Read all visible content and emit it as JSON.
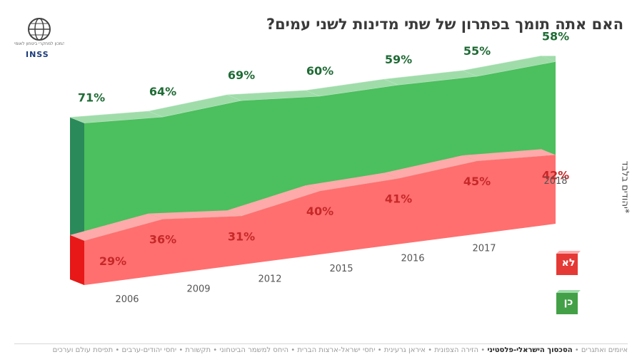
{
  "title": "האם אתה תומך בפתרון של שתי מדינות לשני עמים?",
  "side_note": "*יהודים בלבד",
  "logo": {
    "org_text": "המכון למחקרי ביטחון לאומי",
    "brand": "INSS"
  },
  "legend": [
    {
      "label": "לא",
      "color": "#e53935"
    },
    {
      "label": "כן",
      "color": "#43a047"
    }
  ],
  "footer": {
    "items": [
      "איומים ואתגרים",
      "הסכסוך הישראלי-פלסטיני",
      "הזירה הצפונית",
      "איראן גרעינית",
      "יחסי ישראל-ארצות הברית",
      "היחס למשמר הביטחוני",
      "תקשורת",
      "יחסי יהודים-ערבים",
      "תפיסת עולם וערכים"
    ],
    "active_index": 1
  },
  "colors": {
    "yes_front": "#4cbf5e",
    "yes_top": "#9fdcaa",
    "yes_side": "#2a8a5a",
    "no_front": "#ff6f6f",
    "no_top": "#ffaaaa",
    "no_side": "#e81818",
    "yes_label": "#1f6b35",
    "no_label": "#c62828"
  },
  "chart_data": {
    "type": "area",
    "x": [
      "2006",
      "2009",
      "2012",
      "2015",
      "2016",
      "2017",
      "2018"
    ],
    "series": [
      {
        "name": "כן",
        "values": [
          71,
          64,
          69,
          60,
          59,
          55,
          58
        ]
      },
      {
        "name": "לא",
        "values": [
          29,
          36,
          31,
          40,
          41,
          45,
          42
        ]
      }
    ],
    "value_labels": {
      "yes": [
        "71%",
        "64%",
        "69%",
        "60%",
        "59%",
        "55%",
        "58%"
      ],
      "no": [
        "29%",
        "36%",
        "31%",
        "40%",
        "41%",
        "45%",
        "42%"
      ]
    },
    "grid": false,
    "legend_position": "bottom-right"
  }
}
